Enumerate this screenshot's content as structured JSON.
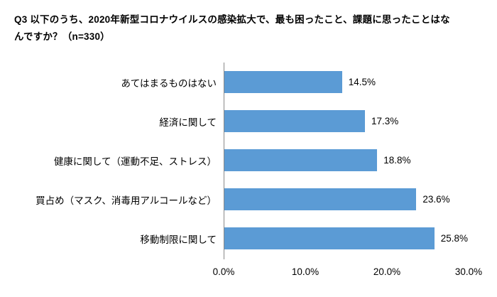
{
  "title": "Q3 以下のうち、2020年新型コロナウイルスの感染拡大で、最も困ったこと、課題に思ったことはなんですか？（n=330）",
  "chart_data": {
    "type": "bar",
    "orientation": "horizontal",
    "title": "Q3 以下のうち、2020年新型コロナウイルスの感染拡大で、最も困ったこと、課題に思ったことはなんですか？（n=330）",
    "categories": [
      "あてはまるものはない",
      "経済に関して",
      "健康に関して（運動不足、ストレス）",
      "買占め（マスク、消毒用アルコールなど）",
      "移動制限に関して"
    ],
    "values": [
      14.5,
      17.3,
      18.8,
      23.6,
      25.8
    ],
    "value_labels": [
      "14.5%",
      "17.3%",
      "18.8%",
      "23.6%",
      "25.8%"
    ],
    "x_ticks": [
      "0.0%",
      "10.0%",
      "20.0%",
      "30.0%"
    ],
    "xlim": [
      0,
      30
    ],
    "bar_color": "#5B9BD5",
    "grid": false,
    "legend": false,
    "xlabel": "",
    "ylabel": ""
  }
}
